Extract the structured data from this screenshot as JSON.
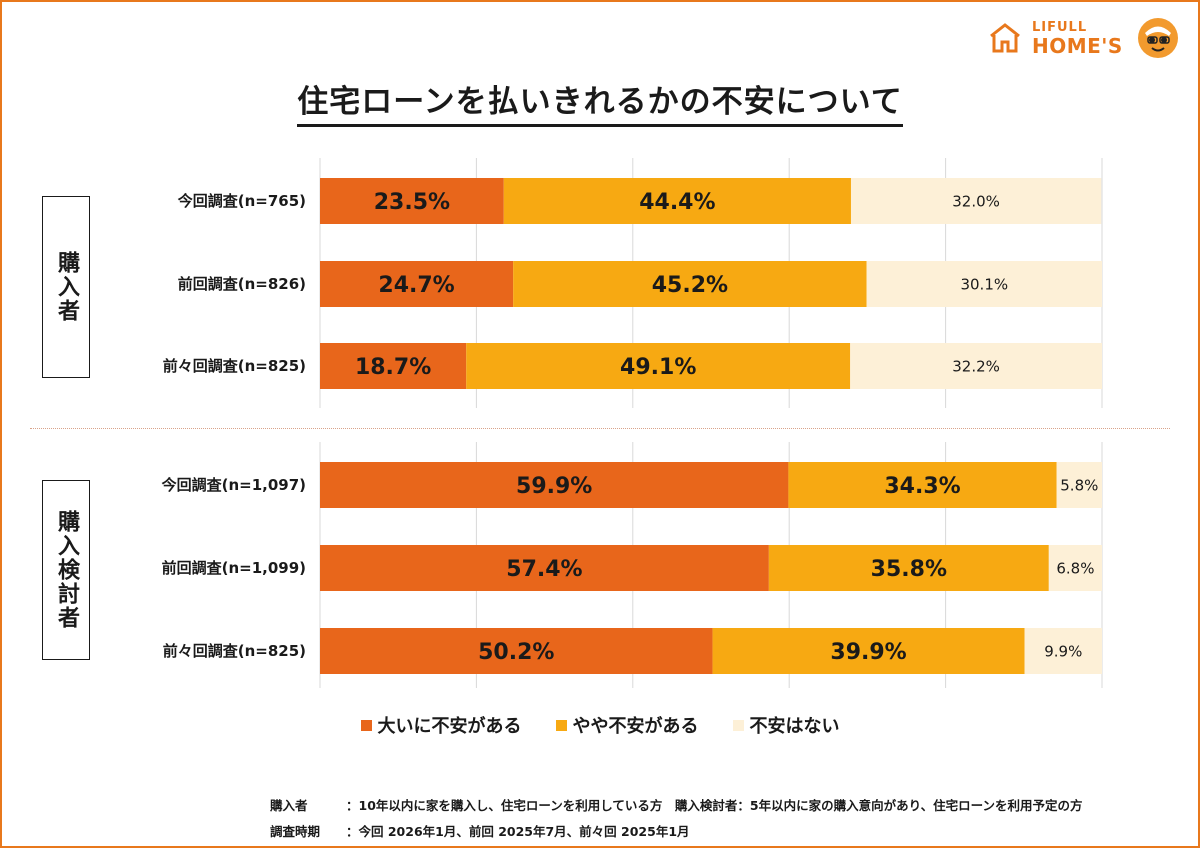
{
  "logo": {
    "top": "LIFULL",
    "bottom": "HOME'S"
  },
  "colors": {
    "strong": "#e8661b",
    "somewhat": "#f7a912",
    "none": "#fdf0d7",
    "accent": "#e8781c"
  },
  "chart_data": {
    "type": "bar",
    "orientation": "horizontal-stacked-100",
    "title": "住宅ローンを払いきれるかの不安について",
    "xlim": [
      0,
      100
    ],
    "legend": [
      "大いに不安がある",
      "やや不安がある",
      "不安はない"
    ],
    "legend_position": "bottom",
    "groups": [
      {
        "name": "購入者",
        "rows": [
          {
            "label": "今回調査(n=765)",
            "values": [
              23.5,
              44.4,
              32.0
            ],
            "labels": [
              "23.5%",
              "44.4%",
              "32.0%"
            ]
          },
          {
            "label": "前回調査(n=826)",
            "values": [
              24.7,
              45.2,
              30.1
            ],
            "labels": [
              "24.7%",
              "45.2%",
              "30.1%"
            ]
          },
          {
            "label": "前々回調査(n=825)",
            "values": [
              18.7,
              49.1,
              32.2
            ],
            "labels": [
              "18.7%",
              "49.1%",
              "32.2%"
            ]
          }
        ]
      },
      {
        "name": "購入検討者",
        "rows": [
          {
            "label": "今回調査(n=1,097)",
            "values": [
              59.9,
              34.3,
              5.8
            ],
            "labels": [
              "59.9%",
              "34.3%",
              "5.8%"
            ]
          },
          {
            "label": "前回調査(n=1,099)",
            "values": [
              57.4,
              35.8,
              6.8
            ],
            "labels": [
              "57.4%",
              "35.8%",
              "6.8%"
            ]
          },
          {
            "label": "前々回調査(n=825)",
            "values": [
              50.2,
              39.9,
              9.9
            ],
            "labels": [
              "50.2%",
              "39.9%",
              "9.9%"
            ]
          }
        ]
      }
    ]
  },
  "notes": {
    "row1_key": "購入者",
    "row1_text": "：10年以内に家を購入し、住宅ローンを利用している方　購入検討者：5年以内に家の購入意向があり、住宅ローンを利用予定の方",
    "row2_key": "調査時期",
    "row2_text": "：今回 2026年1月、前回 2025年7月、前々回 2025年1月"
  }
}
